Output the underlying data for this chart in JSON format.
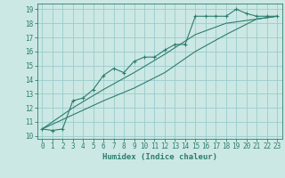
{
  "xlabel": "Humidex (Indice chaleur)",
  "bg_color": "#cce8e4",
  "grid_color": "#99cccc",
  "line_color": "#2d7d6e",
  "xlim": [
    -0.5,
    23.5
  ],
  "ylim": [
    9.8,
    19.4
  ],
  "x_ticks": [
    0,
    1,
    2,
    3,
    4,
    5,
    6,
    7,
    8,
    9,
    10,
    11,
    12,
    13,
    14,
    15,
    16,
    17,
    18,
    19,
    20,
    21,
    22,
    23
  ],
  "y_ticks": [
    10,
    11,
    12,
    13,
    14,
    15,
    16,
    17,
    18,
    19
  ],
  "line1_x": [
    0,
    1,
    2,
    3,
    4,
    5,
    6,
    7,
    8,
    9,
    10,
    11,
    12,
    13,
    14,
    15,
    16,
    17,
    18,
    19,
    20,
    21,
    22,
    23
  ],
  "line1_y": [
    10.5,
    10.4,
    10.5,
    12.5,
    12.7,
    13.3,
    14.3,
    14.8,
    14.5,
    15.3,
    15.6,
    15.6,
    16.1,
    16.5,
    16.5,
    18.5,
    18.5,
    18.5,
    18.5,
    19.0,
    18.7,
    18.5,
    18.5,
    18.5
  ],
  "line2_x": [
    0,
    3,
    6,
    9,
    12,
    15,
    18,
    21,
    23
  ],
  "line2_y": [
    10.5,
    12.0,
    13.3,
    14.5,
    15.8,
    17.2,
    18.0,
    18.3,
    18.5
  ],
  "line3_x": [
    0,
    3,
    6,
    9,
    12,
    15,
    18,
    21,
    23
  ],
  "line3_y": [
    10.5,
    11.5,
    12.5,
    13.4,
    14.5,
    16.0,
    17.2,
    18.3,
    18.5
  ],
  "xlabel_fontsize": 6.5,
  "tick_fontsize": 5.5
}
